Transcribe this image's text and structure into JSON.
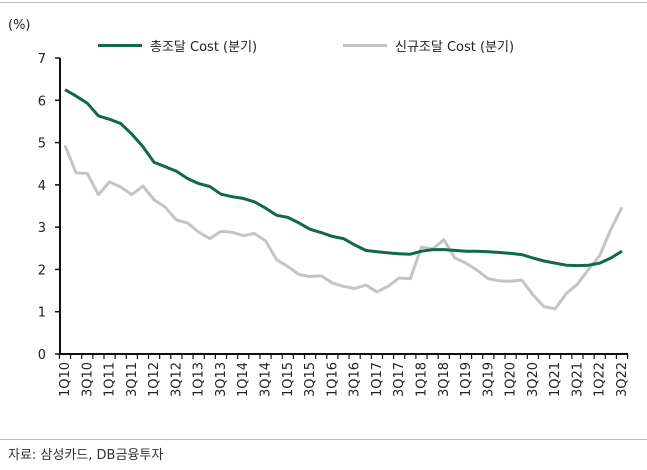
{
  "chart_data": {
    "type": "line",
    "unit_label": "(%)",
    "ylim": [
      0,
      7
    ],
    "yticks": [
      0,
      1,
      2,
      3,
      4,
      5,
      6,
      7
    ],
    "grid": false,
    "legend_position": "top",
    "categories": [
      "1Q10",
      "2Q10",
      "3Q10",
      "4Q10",
      "1Q11",
      "2Q11",
      "3Q11",
      "4Q11",
      "1Q12",
      "2Q12",
      "3Q12",
      "4Q12",
      "1Q13",
      "2Q13",
      "3Q13",
      "4Q13",
      "1Q14",
      "2Q14",
      "3Q14",
      "4Q14",
      "1Q15",
      "2Q15",
      "3Q15",
      "4Q15",
      "1Q16",
      "2Q16",
      "3Q16",
      "4Q16",
      "1Q17",
      "2Q17",
      "3Q17",
      "4Q17",
      "1Q18",
      "2Q18",
      "3Q18",
      "4Q18",
      "1Q19",
      "2Q19",
      "3Q19",
      "4Q19",
      "1Q20",
      "2Q20",
      "3Q20",
      "4Q20",
      "1Q21",
      "2Q21",
      "3Q21",
      "4Q21",
      "1Q22",
      "2Q22",
      "3Q22"
    ],
    "tick_labels": [
      "1Q10",
      "3Q10",
      "1Q11",
      "3Q11",
      "1Q12",
      "3Q12",
      "1Q13",
      "3Q13",
      "1Q14",
      "3Q14",
      "1Q15",
      "3Q15",
      "1Q16",
      "3Q16",
      "1Q17",
      "3Q17",
      "1Q18",
      "3Q18",
      "1Q19",
      "3Q19",
      "1Q20",
      "3Q20",
      "1Q21",
      "3Q21",
      "1Q22",
      "3Q22"
    ],
    "series": [
      {
        "name": "총조달 Cost (분기)",
        "color": "#0e6b45",
        "values": [
          6.25,
          6.1,
          5.93,
          5.63,
          5.55,
          5.45,
          5.2,
          4.9,
          4.53,
          4.43,
          4.32,
          4.15,
          4.03,
          3.96,
          3.78,
          3.72,
          3.68,
          3.6,
          3.45,
          3.28,
          3.23,
          3.1,
          2.95,
          2.87,
          2.78,
          2.73,
          2.58,
          2.45,
          2.42,
          2.39,
          2.37,
          2.36,
          2.43,
          2.47,
          2.47,
          2.45,
          2.43,
          2.43,
          2.42,
          2.4,
          2.38,
          2.35,
          2.27,
          2.2,
          2.15,
          2.1,
          2.09,
          2.1,
          2.15,
          2.27,
          2.43
        ]
      },
      {
        "name": "신규조달 Cost (분기)",
        "color": "#c4c4c4",
        "values": [
          4.93,
          4.28,
          4.27,
          3.77,
          4.07,
          3.95,
          3.77,
          3.97,
          3.65,
          3.47,
          3.17,
          3.1,
          2.88,
          2.73,
          2.9,
          2.88,
          2.8,
          2.85,
          2.68,
          2.23,
          2.07,
          1.88,
          1.83,
          1.85,
          1.68,
          1.6,
          1.55,
          1.63,
          1.47,
          1.6,
          1.8,
          1.78,
          2.53,
          2.48,
          2.7,
          2.27,
          2.15,
          1.98,
          1.78,
          1.73,
          1.72,
          1.75,
          1.4,
          1.12,
          1.07,
          1.43,
          1.65,
          2.0,
          2.33,
          2.95,
          3.47
        ]
      }
    ]
  },
  "source": "자료: 삼성카드, DB금융투자"
}
